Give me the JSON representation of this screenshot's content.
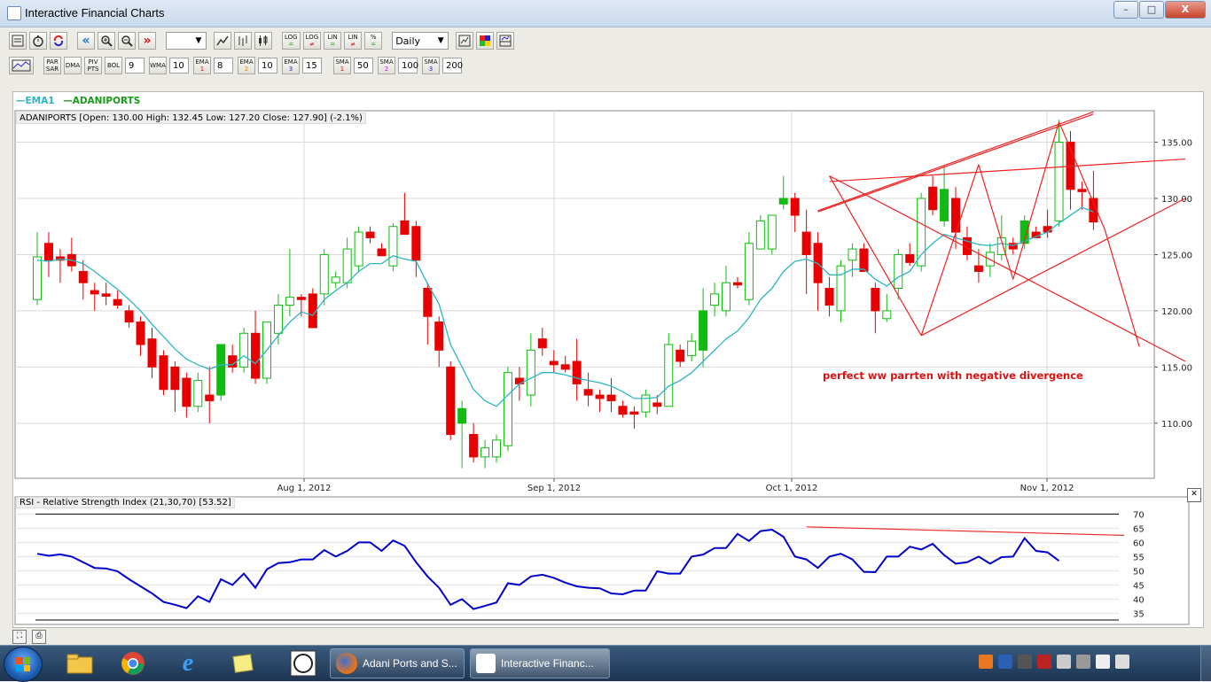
{
  "window": {
    "title": "Interactive Financial Charts",
    "controls": {
      "minimize": "–",
      "maximize": "□",
      "close": "X"
    }
  },
  "toolbar1": {
    "buttons": [
      "pan-left",
      "zoom-in",
      "zoom-out",
      "pan-right"
    ],
    "scale_buttons": [
      {
        "top": "LOG",
        "bottom": "="
      },
      {
        "top": "LOG",
        "bottom": "≠"
      },
      {
        "top": "LIN",
        "bottom": "="
      },
      {
        "top": "LIN",
        "bottom": "≠"
      },
      {
        "top": "%",
        "bottom": "="
      }
    ],
    "interval": "Daily"
  },
  "toolbar2": {
    "par_sar": "PAR SAR",
    "dma": "DMA",
    "piv_pts": "PIV PTS",
    "bol": "BOL",
    "bol_value": "9",
    "wma": "WMA",
    "wma_value": "10",
    "ema1": "EMA",
    "ema1_n": "1",
    "ema1_value": "8",
    "ema2": "EMA",
    "ema2_n": "2",
    "ema2_value": "10",
    "ema3": "EMA",
    "ema3_n": "3",
    "ema3_value": "15",
    "sma1": "SMA",
    "sma1_n": "1",
    "sma1_value": "50",
    "sma2": "SMA",
    "sma2_n": "2",
    "sma2_value": "100",
    "sma3": "SMA",
    "sma3_n": "3",
    "sma3_value": "200"
  },
  "legend": {
    "ema": "EMA1",
    "symbol": "ADANIPORTS"
  },
  "info_line": "ADANIPORTS [Open: 130.00  High: 132.45  Low: 127.20  Close: 127.90] (-2.1%)",
  "annotation": "perfect ww parrten with negative divergence",
  "rsi_title": "RSI - Relative Strength Index (21,30,70) [53.52]",
  "colors": {
    "up": "#11bb11",
    "down": "#e80000",
    "ema": "#2cb5c5",
    "rsi": "#0000cc",
    "trendline": "#ee2222"
  },
  "chart_data": [
    {
      "type": "candlestick",
      "x_ticks": [
        "Aug 1, 2012",
        "Sep 1, 2012",
        "Oct 1, 2012",
        "Nov 1, 2012"
      ],
      "y_ticks": [
        "135.00",
        "130.00",
        "125.00",
        "120.00",
        "115.00",
        "110.00"
      ],
      "ylim": [
        105.1,
        137.8
      ],
      "candles": [
        {
          "o": 121,
          "h": 127,
          "l": 120.5,
          "c": 124.8
        },
        {
          "o": 126,
          "h": 127,
          "l": 123,
          "c": 124.5
        },
        {
          "o": 124.8,
          "h": 125.5,
          "l": 122.5,
          "c": 124.5
        },
        {
          "o": 125,
          "h": 126.5,
          "l": 123.5,
          "c": 124
        },
        {
          "o": 123.5,
          "h": 124.5,
          "l": 121,
          "c": 122.5
        },
        {
          "o": 121.8,
          "h": 122.5,
          "l": 120,
          "c": 121.5
        },
        {
          "o": 121.5,
          "h": 122.5,
          "l": 120.5,
          "c": 121.3
        },
        {
          "o": 121,
          "h": 121.8,
          "l": 120.2,
          "c": 120.5
        },
        {
          "o": 120,
          "h": 120.5,
          "l": 118.5,
          "c": 119
        },
        {
          "o": 119,
          "h": 119.5,
          "l": 116,
          "c": 117
        },
        {
          "o": 117.5,
          "h": 118.5,
          "l": 114,
          "c": 115
        },
        {
          "o": 116,
          "h": 116.5,
          "l": 112.5,
          "c": 113
        },
        {
          "o": 115,
          "h": 115.5,
          "l": 111,
          "c": 113
        },
        {
          "o": 114,
          "h": 114.5,
          "l": 110.5,
          "c": 111.5
        },
        {
          "o": 111.5,
          "h": 114.5,
          "l": 111,
          "c": 113.8
        },
        {
          "o": 112.5,
          "h": 115,
          "l": 110,
          "c": 112
        },
        {
          "o": 112.5,
          "h": 117,
          "l": 112,
          "c": 117
        },
        {
          "o": 116,
          "h": 117,
          "l": 114.5,
          "c": 115
        },
        {
          "o": 115,
          "h": 118.5,
          "l": 114.5,
          "c": 118
        },
        {
          "o": 118,
          "h": 120,
          "l": 113.5,
          "c": 114
        },
        {
          "o": 114,
          "h": 119,
          "l": 113.5,
          "c": 119
        },
        {
          "o": 118,
          "h": 121.5,
          "l": 117,
          "c": 120.5
        },
        {
          "o": 120.5,
          "h": 125.5,
          "l": 119.5,
          "c": 121.2
        },
        {
          "o": 121.2,
          "h": 121.5,
          "l": 119.5,
          "c": 121
        },
        {
          "o": 121.5,
          "h": 122,
          "l": 118.5,
          "c": 118.5
        },
        {
          "o": 121.5,
          "h": 125.5,
          "l": 120.5,
          "c": 125
        },
        {
          "o": 122.5,
          "h": 123.5,
          "l": 122,
          "c": 123
        },
        {
          "o": 122.5,
          "h": 126.5,
          "l": 122,
          "c": 125.5
        },
        {
          "o": 124,
          "h": 127.5,
          "l": 123.5,
          "c": 127
        },
        {
          "o": 127,
          "h": 127.5,
          "l": 126,
          "c": 126.5
        },
        {
          "o": 125.5,
          "h": 126,
          "l": 125,
          "c": 124.9
        },
        {
          "o": 124,
          "h": 127.8,
          "l": 123.5,
          "c": 127.5
        },
        {
          "o": 128,
          "h": 130.5,
          "l": 127,
          "c": 126.8
        },
        {
          "o": 127.5,
          "h": 128,
          "l": 123,
          "c": 124.5
        },
        {
          "o": 122,
          "h": 122.5,
          "l": 117,
          "c": 119.5
        },
        {
          "o": 119,
          "h": 119.5,
          "l": 115,
          "c": 116.5
        },
        {
          "o": 115,
          "h": 115.5,
          "l": 108.5,
          "c": 109
        },
        {
          "o": 110,
          "h": 112,
          "l": 106,
          "c": 111.3
        },
        {
          "o": 109,
          "h": 110,
          "l": 106.5,
          "c": 107
        },
        {
          "o": 107,
          "h": 108.5,
          "l": 106,
          "c": 107.8
        },
        {
          "o": 107,
          "h": 109,
          "l": 106.5,
          "c": 108.5
        },
        {
          "o": 108,
          "h": 115,
          "l": 107.5,
          "c": 114.5
        },
        {
          "o": 114,
          "h": 115,
          "l": 112,
          "c": 113.5
        },
        {
          "o": 112.5,
          "h": 118,
          "l": 111.5,
          "c": 116.5
        },
        {
          "o": 117.5,
          "h": 118.5,
          "l": 116,
          "c": 116.7
        },
        {
          "o": 115.5,
          "h": 116.5,
          "l": 114.5,
          "c": 115.2
        },
        {
          "o": 115.2,
          "h": 116,
          "l": 114.5,
          "c": 114.8
        },
        {
          "o": 115.5,
          "h": 117.5,
          "l": 112,
          "c": 113.5
        },
        {
          "o": 113,
          "h": 114.5,
          "l": 111.5,
          "c": 112.5
        },
        {
          "o": 112.5,
          "h": 113,
          "l": 111,
          "c": 112.2
        },
        {
          "o": 112.5,
          "h": 114,
          "l": 111,
          "c": 112
        },
        {
          "o": 111.5,
          "h": 112,
          "l": 110.5,
          "c": 110.8
        },
        {
          "o": 111,
          "h": 111.5,
          "l": 109.5,
          "c": 110.8
        },
        {
          "o": 111,
          "h": 113,
          "l": 110.5,
          "c": 112.5
        },
        {
          "o": 111.8,
          "h": 112.5,
          "l": 110.8,
          "c": 111.5
        },
        {
          "o": 111.5,
          "h": 118,
          "l": 111.5,
          "c": 117
        },
        {
          "o": 116.5,
          "h": 117,
          "l": 115,
          "c": 115.5
        },
        {
          "o": 116,
          "h": 118,
          "l": 115.5,
          "c": 117.3
        },
        {
          "o": 116.5,
          "h": 122,
          "l": 115,
          "c": 120
        },
        {
          "o": 120.5,
          "h": 122.5,
          "l": 119.5,
          "c": 121.5
        },
        {
          "o": 120,
          "h": 124,
          "l": 119.5,
          "c": 122.5
        },
        {
          "o": 122.5,
          "h": 123,
          "l": 122,
          "c": 122.3
        },
        {
          "o": 121,
          "h": 127,
          "l": 120.5,
          "c": 126
        },
        {
          "o": 125.5,
          "h": 128.5,
          "l": 125.5,
          "c": 128
        },
        {
          "o": 125.5,
          "h": 128.5,
          "l": 125,
          "c": 128.5
        },
        {
          "o": 129.5,
          "h": 132,
          "l": 129,
          "c": 130
        },
        {
          "o": 130,
          "h": 130.5,
          "l": 127,
          "c": 128.5
        },
        {
          "o": 127,
          "h": 129,
          "l": 121.5,
          "c": 125
        },
        {
          "o": 126,
          "h": 127,
          "l": 120,
          "c": 122.5
        },
        {
          "o": 122,
          "h": 123,
          "l": 119.5,
          "c": 120.5
        },
        {
          "o": 120,
          "h": 124.5,
          "l": 119,
          "c": 124
        },
        {
          "o": 124.5,
          "h": 126,
          "l": 123,
          "c": 125.5
        },
        {
          "o": 125.5,
          "h": 126,
          "l": 123.5,
          "c": 123.5
        },
        {
          "o": 122,
          "h": 122.5,
          "l": 118,
          "c": 120
        },
        {
          "o": 119.3,
          "h": 121.5,
          "l": 119,
          "c": 120
        },
        {
          "o": 122,
          "h": 125.5,
          "l": 121,
          "c": 125
        },
        {
          "o": 125,
          "h": 126,
          "l": 124,
          "c": 124.3
        },
        {
          "o": 124,
          "h": 130.5,
          "l": 123.5,
          "c": 130
        },
        {
          "o": 131,
          "h": 132,
          "l": 128.5,
          "c": 129
        },
        {
          "o": 128,
          "h": 133,
          "l": 127.5,
          "c": 130.8
        },
        {
          "o": 130,
          "h": 131,
          "l": 125.5,
          "c": 127
        },
        {
          "o": 126.5,
          "h": 127.5,
          "l": 124.5,
          "c": 125
        },
        {
          "o": 124,
          "h": 125.5,
          "l": 122.5,
          "c": 123.5
        },
        {
          "o": 124,
          "h": 126,
          "l": 123,
          "c": 125.2
        },
        {
          "o": 125,
          "h": 128.5,
          "l": 124.5,
          "c": 126.5
        },
        {
          "o": 126,
          "h": 126.5,
          "l": 125,
          "c": 125.5
        },
        {
          "o": 126,
          "h": 128.5,
          "l": 125.5,
          "c": 128
        },
        {
          "o": 127,
          "h": 127.5,
          "l": 126.5,
          "c": 126.5
        },
        {
          "o": 127.5,
          "h": 129,
          "l": 126.5,
          "c": 127
        },
        {
          "o": 128,
          "h": 137,
          "l": 127.5,
          "c": 135
        },
        {
          "o": 135,
          "h": 136,
          "l": 129,
          "c": 130.8
        },
        {
          "o": 130.8,
          "h": 131.5,
          "l": 129,
          "c": 130.6
        },
        {
          "o": 130,
          "h": 132.45,
          "l": 127.2,
          "c": 127.9
        }
      ],
      "ema": [
        124.5,
        124.4,
        124.6,
        124.5,
        124.2,
        123.5,
        122.7,
        121.9,
        121,
        120,
        118.8,
        117.7,
        116.6,
        115.7,
        115.2,
        114.8,
        115.2,
        115.2,
        116,
        115.3,
        116.5,
        117.8,
        119,
        119.9,
        119.6,
        121,
        121.8,
        122.5,
        123.5,
        124.2,
        124.2,
        124.9,
        124.6,
        124.4,
        122.4,
        120.6,
        117,
        115,
        113,
        112,
        111.5,
        112.5,
        113.5,
        114,
        114.5,
        114.5,
        114.3,
        114,
        113.8,
        113.6,
        113.3,
        112.8,
        112.2,
        112.2,
        112.3,
        113.3,
        113.8,
        114.5,
        115.5,
        116.5,
        117.5,
        118.2,
        119.4,
        121,
        122,
        123.5,
        124.4,
        124.6,
        124.2,
        123.2,
        123.2,
        123.7,
        123.7,
        122.8,
        122.2,
        123,
        123.5,
        125,
        126,
        126.8,
        126.5,
        126.2,
        125.9,
        125.8,
        126,
        125.8,
        126.2,
        126.6,
        127,
        127.8,
        128.5,
        129.2,
        128.8
      ],
      "annotation": "perfect ww parrten with negative divergence"
    },
    {
      "type": "line",
      "title": "RSI - Relative Strength Index (21,30,70) [53.52]",
      "y_ticks": [
        "70",
        "65",
        "60",
        "55",
        "50",
        "45",
        "40",
        "35"
      ],
      "ylim": [
        32,
        72
      ],
      "levels": [
        70,
        30
      ],
      "values": [
        56,
        55.3,
        55.8,
        55,
        53,
        51,
        50.8,
        49.8,
        47,
        44.5,
        42,
        39,
        38,
        36.8,
        41,
        39,
        47,
        45,
        49,
        44,
        50.5,
        52.7,
        53,
        54,
        54,
        57.3,
        55,
        57,
        60,
        60,
        57,
        60.7,
        58.8,
        53,
        48,
        44,
        38,
        40,
        36.5,
        37.6,
        38.8,
        45.6,
        45,
        48,
        48.6,
        47.5,
        45.8,
        44.5,
        44,
        43.8,
        42,
        41.7,
        43,
        43,
        49.8,
        49,
        49,
        55,
        55.7,
        58,
        58,
        63,
        60.5,
        64,
        64.5,
        62,
        55,
        54,
        51,
        55,
        56,
        54,
        49.6,
        49.5,
        55,
        55,
        58.5,
        57.5,
        59.5,
        55.5,
        52.5,
        53,
        55,
        52.5,
        54.8,
        55,
        61.5,
        57,
        56.5,
        53.5
      ]
    }
  ]
}
